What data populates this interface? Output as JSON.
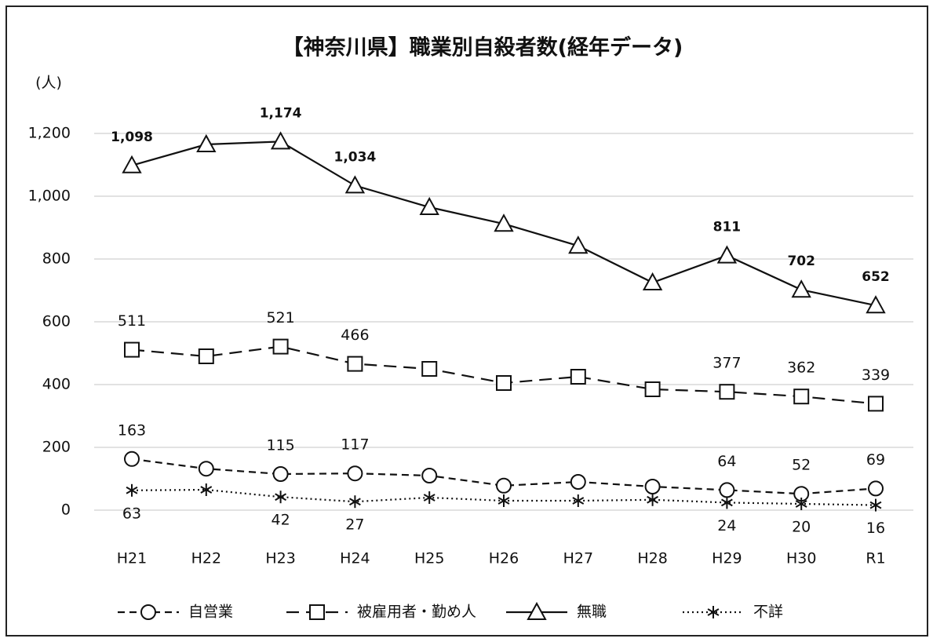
{
  "chart_data": {
    "type": "line",
    "title": "【神奈川県】職業別自殺者数(経年データ)",
    "y_label": "(人)",
    "categories": [
      "H21",
      "H22",
      "H23",
      "H24",
      "H25",
      "H26",
      "H27",
      "H28",
      "H29",
      "H30",
      "R1"
    ],
    "ylim": [
      0,
      1400
    ],
    "yticks": [
      0,
      200,
      400,
      600,
      800,
      {
        "value": 1000,
        "label": "1,000"
      },
      {
        "value": 1200,
        "label": "1,200"
      }
    ],
    "grid": true,
    "legend": "bottom",
    "series": [
      {
        "name": "自営業",
        "color": "#111111",
        "marker": "circle",
        "line_style": "dashed",
        "label_position": "above",
        "values": [
          163,
          132,
          115,
          117,
          110,
          78,
          90,
          75,
          64,
          52,
          69
        ],
        "value_labels": [
          "163",
          null,
          "115",
          "117",
          null,
          null,
          null,
          null,
          "64",
          "52",
          "69"
        ]
      },
      {
        "name": "被雇用者・勤め人",
        "color": "#111111",
        "marker": "square",
        "line_style": "long-dashed",
        "label_position": "above",
        "values": [
          511,
          490,
          521,
          466,
          450,
          405,
          425,
          385,
          377,
          362,
          339
        ],
        "value_labels": [
          "511",
          null,
          "521",
          "466",
          null,
          null,
          null,
          null,
          "377",
          "362",
          "339"
        ]
      },
      {
        "name": "無職",
        "color": "#111111",
        "marker": "triangle",
        "line_style": "solid",
        "label_position": "above",
        "values": [
          1098,
          1165,
          1174,
          1034,
          965,
          912,
          842,
          725,
          811,
          702,
          652
        ],
        "value_labels": [
          "1,098",
          null,
          "1,174",
          "1,034",
          null,
          null,
          null,
          null,
          "811",
          "702",
          "652"
        ]
      },
      {
        "name": "不詳",
        "color": "#111111",
        "marker": "asterisk",
        "line_style": "dotted",
        "label_position": "below",
        "values": [
          63,
          65,
          42,
          27,
          40,
          30,
          30,
          33,
          24,
          20,
          16
        ],
        "value_labels": [
          "63",
          null,
          "42",
          "27",
          null,
          null,
          null,
          null,
          "24",
          "20",
          "16"
        ]
      }
    ]
  }
}
